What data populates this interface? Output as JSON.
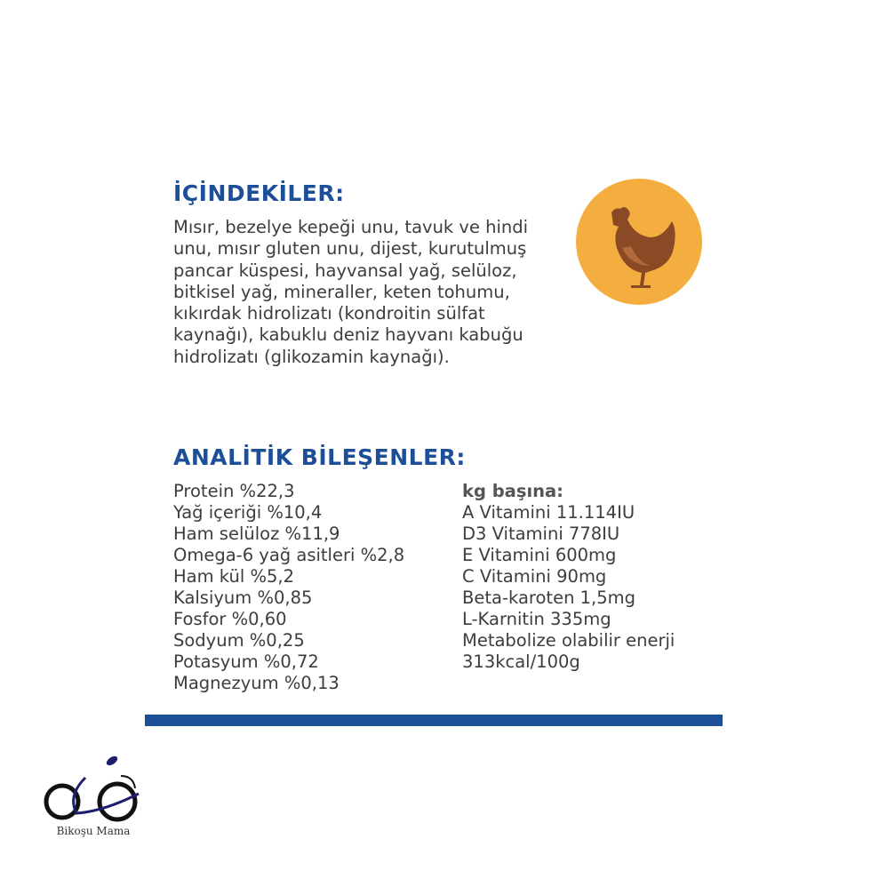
{
  "ingredients": {
    "title": "İÇİNDEKİLER:",
    "lines": [
      "Mısır, bezelye kepeği unu, tavuk ve hindi",
      "unu, mısır gluten unu, dijest, kurutulmuş",
      "pancar küspesi, hayvansal yağ, selüloz,",
      "bitkisel yağ, mineraller, keten tohumu,",
      "kıkırdak hidrolizatı (kondroitin sülfat",
      "kaynağı), kabuklu deniz hayvanı kabuğu",
      "hidrolizatı (glikozamin kaynağı)."
    ],
    "icon": "chicken-icon",
    "icon_bg_color": "#F4AE3F",
    "icon_color": "#8B4A26"
  },
  "analytics": {
    "title": "ANALİTİK BİLEŞENLER:",
    "left": [
      "Protein %22,3",
      "Yağ içeriği %10,4",
      "Ham selüloz %11,9",
      "Omega-6 yağ asitleri %2,8",
      "Ham kül %5,2",
      "Kalsiyum %0,85",
      "Fosfor %0,60",
      "Sodyum %0,25",
      "Potasyum %0,72",
      "Magnezyum %0,13"
    ],
    "right_heading": "kg başına:",
    "right": [
      "A Vitamini 11.114IU",
      "D3 Vitamini 778IU",
      "E Vitamini 600mg",
      "C Vitamini 90mg",
      "Beta-karoten 1,5mg",
      "L-Karnitin 335mg",
      "Metabolize olabilir enerji",
      "313kcal/100g"
    ]
  },
  "accent_color": "#1D4F99",
  "watermark": {
    "text": "Bikoşu Mama",
    "icon": "bicycle-logo-icon"
  }
}
